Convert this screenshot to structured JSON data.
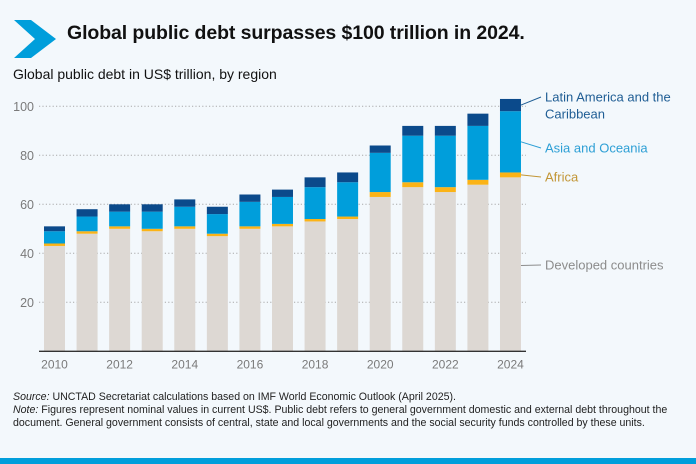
{
  "header": {
    "title": "Global public debt surpasses $100 trillion in 2024.",
    "subtitle": "Global public debt in US$ trillion, by region",
    "accent_color": "#009edb"
  },
  "footer": {
    "source_label": "Source:",
    "source_text": " UNCTAD Secretariat calculations based on IMF World Economic Outlook (April 2025).",
    "note_label": "Note:",
    "note_text": " Figures represent nominal values in current US$. Public debt refers to general government domestic and external debt throughout the document. General government consists of central, state and local governments and the social security funds controlled by these units."
  },
  "chart_data": {
    "type": "bar",
    "stacked": true,
    "title": "Global public debt surpasses $100 trillion in 2024.",
    "subtitle": "Global public debt in US$ trillion, by region",
    "xlabel": "",
    "ylabel": "US$ trillion",
    "ylim": [
      0,
      105
    ],
    "yticks": [
      20,
      40,
      60,
      80,
      100
    ],
    "grid": true,
    "legend_placement": "right (direct labels)",
    "categories": [
      "2010",
      "2011",
      "2012",
      "2013",
      "2014",
      "2015",
      "2016",
      "2017",
      "2018",
      "2019",
      "2020",
      "2021",
      "2022",
      "2023",
      "2024"
    ],
    "xtick_labels": [
      "2010",
      "2012",
      "2014",
      "2016",
      "2018",
      "2020",
      "2022",
      "2024"
    ],
    "series": [
      {
        "name": "Developed countries",
        "color": "#ddd8d3",
        "label_color": "#8c8c8c",
        "values": [
          43,
          48,
          50,
          49,
          50,
          47,
          50,
          51,
          53,
          54,
          63,
          67,
          65,
          68,
          71
        ]
      },
      {
        "name": "Africa",
        "color": "#fbb316",
        "label_color": "#c29636",
        "values": [
          1,
          1,
          1,
          1,
          1,
          1,
          1,
          1,
          1,
          1,
          2,
          2,
          2,
          2,
          2
        ]
      },
      {
        "name": "Asia and Oceania",
        "color": "#009edb",
        "label_color": "#2d9fd5",
        "values": [
          5,
          6,
          6,
          7,
          8,
          8,
          10,
          11,
          13,
          14,
          16,
          19,
          21,
          22,
          25
        ]
      },
      {
        "name": "Latin America and the Caribbean",
        "color": "#0b4a8b",
        "label_color": "#1f5d94",
        "label_lines": [
          "Latin America and the",
          "Caribbean"
        ],
        "values": [
          2,
          3,
          3,
          3,
          3,
          3,
          3,
          3,
          4,
          4,
          3,
          4,
          4,
          5,
          5
        ]
      }
    ],
    "totals": [
      51,
      58,
      60,
      60,
      62,
      59,
      64,
      66,
      71,
      73,
      84,
      92,
      92,
      97,
      103
    ]
  }
}
